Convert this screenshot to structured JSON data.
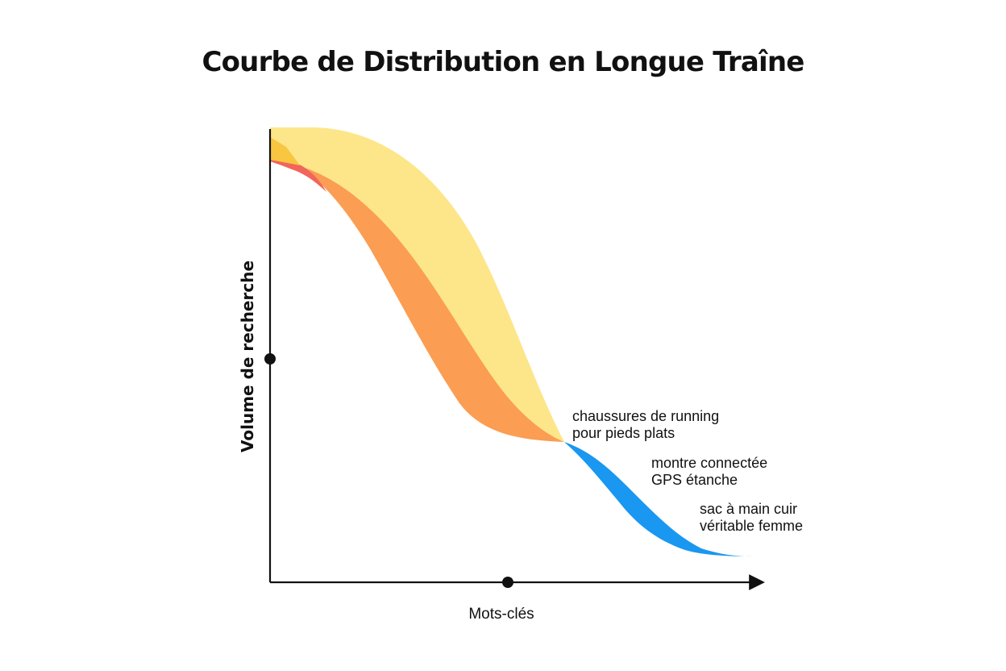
{
  "chart_data": {
    "type": "area",
    "title": "Courbe de Distribution en Longue Traîne",
    "xlabel": "Mots-clés",
    "ylabel": "Volume de recherche",
    "grid": false,
    "legend": "none",
    "series": [
      {
        "role": "head-band-outer",
        "color": "#FDE68A"
      },
      {
        "role": "head-band-inner",
        "color": "#FB9D52"
      },
      {
        "role": "head-accent",
        "color": "#F2655A"
      },
      {
        "role": "long-tail",
        "color": "#1A97F0"
      }
    ],
    "annotations": [
      {
        "lines": [
          "chaussures de running",
          "pour pieds plats"
        ]
      },
      {
        "lines": [
          "montre connectée",
          "GPS étanche"
        ]
      },
      {
        "lines": [
          "sac à main cuir",
          "véritable femme"
        ]
      }
    ]
  }
}
